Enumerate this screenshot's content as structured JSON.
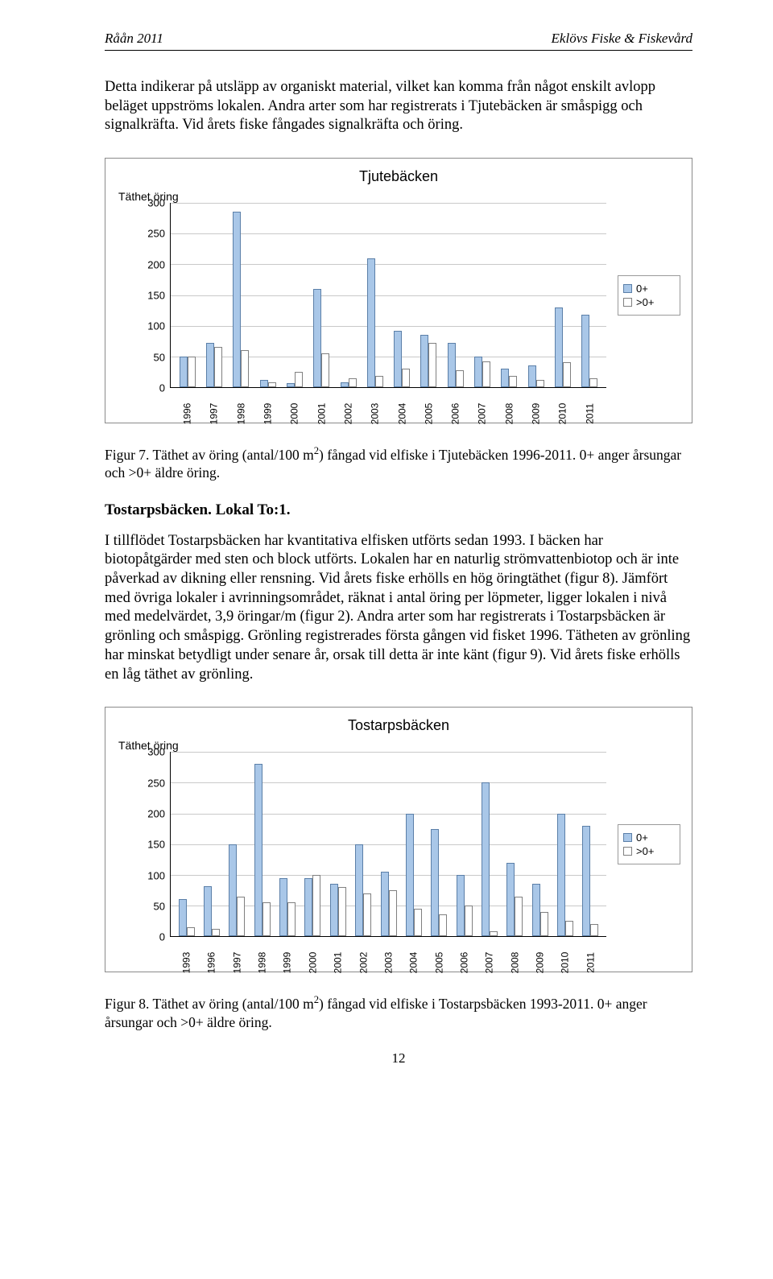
{
  "header": {
    "left": "Råån 2011",
    "right": "Eklövs Fiske & Fiskevård"
  },
  "intro_text": "Detta indikerar på utsläpp av organiskt material, vilket kan komma från något enskilt avlopp beläget uppströms lokalen. Andra arter som har registrerats i Tjutebäcken är småspigg och signalkräfta. Vid årets fiske fångades signalkräfta och öring.",
  "chart1": {
    "type": "bar",
    "title": "Tjutebäcken",
    "y_title": "Täthet öring",
    "ylim": [
      0,
      300
    ],
    "ytick_step": 50,
    "bar0_fill": "#a9c7e8",
    "bar0_border": "#5b7fa8",
    "barGt0_fill": "#ffffff",
    "barGt0_border": "#808080",
    "grid_color": "#c9c9c9",
    "legend": [
      "0+",
      ">0+"
    ],
    "years": [
      "1996",
      "1997",
      "1998",
      "1999",
      "2000",
      "2001",
      "2002",
      "2003",
      "2004",
      "2005",
      "2006",
      "2007",
      "2008",
      "2009",
      "2010",
      "2011"
    ],
    "series0": [
      50,
      72,
      285,
      12,
      7,
      160,
      8,
      210,
      92,
      85,
      72,
      50,
      30,
      35,
      130,
      118
    ],
    "seriesGt0": [
      50,
      65,
      60,
      8,
      25,
      55,
      15,
      18,
      30,
      72,
      28,
      42,
      18,
      12,
      40,
      15
    ]
  },
  "caption1_pre": "Figur 7. Täthet av öring (antal/100 m",
  "caption1_post": ") fångad vid elfiske i Tjutebäcken 1996-2011. 0+ anger årsungar och >0+ äldre öring.",
  "section_heading": "Tostarpsbäcken. Lokal To:1.",
  "body_text": "I tillflödet Tostarpsbäcken har kvantitativa elfisken utförts sedan 1993. I bäcken har biotopåtgärder med sten och block utförts. Lokalen har en naturlig strömvattenbiotop och är inte påverkad av dikning eller rensning. Vid årets fiske erhölls en hög öringtäthet (figur 8). Jämfört med övriga lokaler i avrinningsområdet, räknat i antal öring per löpmeter, ligger lokalen i nivå med medelvärdet, 3,9 öringar/m (figur 2). Andra arter som har registrerats i Tostarpsbäcken är grönling och småspigg. Grönling registrerades första gången vid fisket 1996. Tätheten av grönling har minskat betydligt under senare år, orsak till detta är inte känt (figur 9). Vid årets fiske erhölls en låg täthet av grönling.",
  "chart2": {
    "type": "bar",
    "title": "Tostarpsbäcken",
    "y_title": "Täthet öring",
    "ylim": [
      0,
      300
    ],
    "ytick_step": 50,
    "bar0_fill": "#a9c7e8",
    "bar0_border": "#5b7fa8",
    "barGt0_fill": "#ffffff",
    "barGt0_border": "#808080",
    "grid_color": "#c9c9c9",
    "legend": [
      "0+",
      ">0+"
    ],
    "years": [
      "1993",
      "1996",
      "1997",
      "1998",
      "1999",
      "2000",
      "2001",
      "2002",
      "2003",
      "2004",
      "2005",
      "2006",
      "2007",
      "2008",
      "2009",
      "2010",
      "2011"
    ],
    "series0": [
      60,
      82,
      150,
      280,
      95,
      95,
      85,
      150,
      105,
      200,
      175,
      100,
      250,
      120,
      85,
      200,
      180
    ],
    "seriesGt0": [
      15,
      12,
      65,
      55,
      55,
      100,
      80,
      70,
      75,
      45,
      35,
      50,
      8,
      65,
      40,
      25,
      20
    ]
  },
  "caption2_pre": "Figur 8. Täthet av öring (antal/100 m",
  "caption2_post": ") fångad vid elfiske i Tostarpsbäcken 1993-2011. 0+ anger årsungar och >0+ äldre öring.",
  "page_number": "12"
}
